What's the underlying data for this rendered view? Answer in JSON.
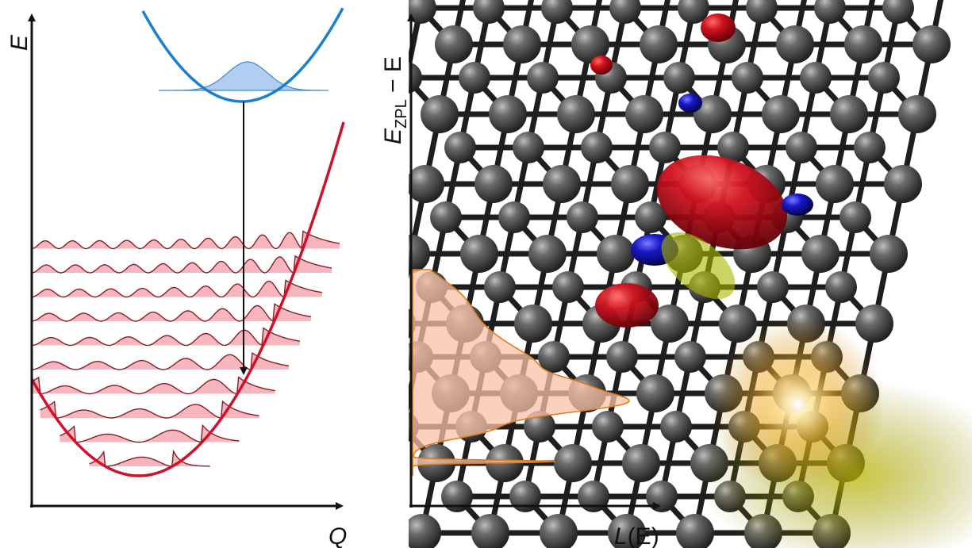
{
  "left_panel": {
    "y_axis_label": "E",
    "x_axis_label": "Q",
    "colors": {
      "excited_curve": "#1a7fcf",
      "excited_fill": "#a9c8ee",
      "ground_curve": "#d0102a",
      "ground_fill": "#f4a9b1",
      "wavefunction_line": "#8a1c28",
      "axis": "#111111"
    },
    "vibrational_levels": 10
  },
  "right_panel": {
    "y_axis_label_main": "E",
    "y_axis_label_sub": "ZPL",
    "y_axis_label_rest": " − E",
    "x_axis_label_main": "L",
    "x_axis_label_rest": "(E)",
    "colors": {
      "spectrum_fill": "#f7c2a6",
      "spectrum_line": "#e07a1a",
      "atom": "#4a4a4a",
      "bond": "#1e1e1e",
      "orbital_red": "#c4101a",
      "orbital_blue": "#1a1ac4",
      "glow": "#ffd66b"
    }
  }
}
